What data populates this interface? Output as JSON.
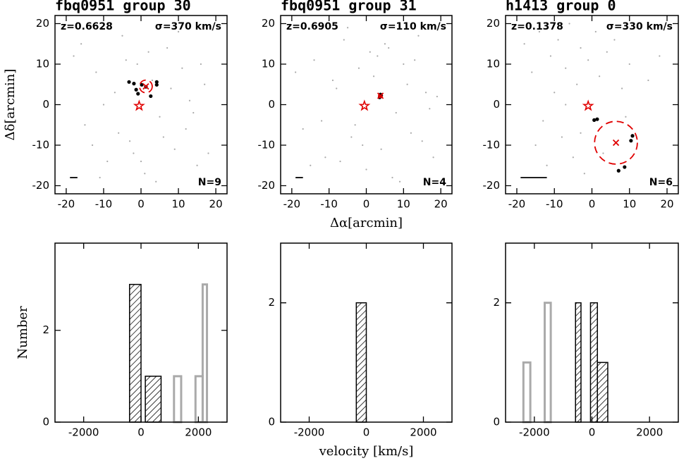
{
  "chart_data": [
    {
      "type": "scatter",
      "title": "fbq0951 group 30",
      "y_label": "Δδ[arcmin]",
      "annotations": {
        "redshift": "z=0.6628",
        "dispersion": "σ=370 km/s",
        "count": "N=9"
      },
      "xlim": [
        -23,
        23
      ],
      "ylim": [
        -22,
        22
      ],
      "xticks": [
        -20,
        -10,
        0,
        10,
        20
      ],
      "yticks": [
        -20,
        -10,
        0,
        10,
        20
      ],
      "scale_bar": 2,
      "series": [
        {
          "marker": "dot",
          "color": "#aaaaaa",
          "x": [
            -18,
            -15,
            -12,
            -9,
            -7,
            -5,
            -3,
            -1,
            1,
            3,
            5,
            7,
            9,
            11,
            13,
            15,
            17,
            -16,
            -11,
            -6,
            -2,
            2,
            6,
            10,
            14,
            -13,
            -8,
            -4,
            4,
            8,
            12,
            16,
            -10,
            0,
            18
          ],
          "values": [
            12,
            -5,
            8,
            -14,
            3,
            17,
            -9,
            10,
            -17,
            6,
            -3,
            14,
            -11,
            9,
            1,
            -15,
            5,
            15,
            -18,
            -7,
            -12,
            13,
            -8,
            18,
            -2,
            -10,
            19,
            11,
            -19,
            4,
            -6,
            10,
            0,
            -14,
            -12
          ]
        },
        {
          "marker": "dot",
          "color": "#000000",
          "x": [
            -3.2,
            -1.9,
            -1.3,
            -0.8,
            2.6,
            4.2,
            4.2,
            0.2,
            1.3
          ],
          "values": [
            5.6,
            5.2,
            3.7,
            2.7,
            2.1,
            5.6,
            4.9,
            4.9,
            4.4
          ]
        },
        {
          "marker": "x",
          "color": "#e00000",
          "x": [
            1.3
          ],
          "values": [
            4.5
          ],
          "radius": [
            1.7
          ]
        },
        {
          "marker": "star",
          "color": "#e00000",
          "x": [
            -0.5
          ],
          "values": [
            -0.3
          ]
        }
      ]
    },
    {
      "type": "scatter",
      "title": "fbq0951 group 31",
      "x_label": "Δα[arcmin]",
      "annotations": {
        "redshift": "z=0.6905",
        "dispersion": "σ=110 km/s",
        "count": "N=4"
      },
      "xlim": [
        -23,
        23
      ],
      "ylim": [
        -22,
        22
      ],
      "xticks": [
        -20,
        -10,
        0,
        10,
        20
      ],
      "yticks": [
        -20,
        -10,
        0,
        10,
        20
      ],
      "scale_bar": 2,
      "series": [
        {
          "marker": "dot",
          "color": "#aaaaaa",
          "x": [
            -17,
            -14,
            -11,
            -8,
            -6,
            -4,
            -2,
            0,
            2,
            4,
            6,
            8,
            10,
            12,
            14,
            16,
            18,
            -19,
            -12,
            -5,
            -1,
            3,
            7,
            11,
            15,
            -15,
            -9,
            -3,
            5,
            9,
            13,
            17,
            -7,
            1,
            19
          ],
          "values": [
            -6,
            11,
            -13,
            4,
            16,
            -8,
            9,
            -16,
            7,
            -11,
            14,
            -2,
            10,
            -7,
            17,
            3,
            -13,
            8,
            -4,
            19,
            -10,
            12,
            -18,
            5,
            -9,
            -15,
            6,
            -5,
            15,
            -19,
            11,
            -1,
            -14,
            13,
            2
          ]
        },
        {
          "marker": "dot",
          "color": "#000000",
          "x": [
            3.8,
            3.8,
            3.6,
            4.0
          ],
          "values": [
            2.5,
            2.0,
            1.8,
            2.2
          ]
        },
        {
          "marker": "x",
          "color": "#e00000",
          "x": [
            3.8
          ],
          "values": [
            2.2
          ],
          "radius": [
            0.5
          ]
        },
        {
          "marker": "star",
          "color": "#e00000",
          "x": [
            -0.5
          ],
          "values": [
            -0.3
          ]
        }
      ]
    },
    {
      "type": "scatter",
      "title": "h1413 group 0",
      "annotations": {
        "redshift": "z=0.1378",
        "dispersion": "σ=330 km/s",
        "count": "N=6"
      },
      "xlim": [
        -23,
        23
      ],
      "ylim": [
        -22,
        22
      ],
      "xticks": [
        -20,
        -10,
        0,
        10,
        20
      ],
      "yticks": [
        -20,
        -10,
        0,
        10,
        20
      ],
      "scale_bar": 7,
      "series": [
        {
          "marker": "dot",
          "color": "#aaaaaa",
          "x": [
            -18,
            -16,
            -14,
            -13,
            -11,
            -10,
            -9,
            -8,
            -7,
            -6,
            -5,
            -4,
            -3,
            -2,
            -1,
            1,
            2,
            4,
            6,
            8,
            10,
            12,
            15,
            18,
            -12,
            -15,
            -7,
            -3,
            3,
            9
          ],
          "values": [
            15,
            8,
            18,
            -4,
            12,
            3,
            16,
            -8,
            9,
            20,
            -13,
            5,
            14,
            -17,
            11,
            18,
            7,
            13,
            16,
            4,
            10,
            19,
            6,
            12,
            -15,
            -10,
            0,
            -7,
            -12,
            -3
          ]
        },
        {
          "marker": "dot",
          "color": "#000000",
          "x": [
            0.6,
            1.4,
            10.4,
            10.8,
            7.1,
            8.7
          ],
          "values": [
            -3.8,
            -3.6,
            -8.9,
            -7.7,
            -16.3,
            -15.4
          ]
        },
        {
          "marker": "x",
          "color": "#e00000",
          "x": [
            6.4
          ],
          "values": [
            -9.4
          ],
          "radius": [
            5.7
          ]
        },
        {
          "marker": "star",
          "color": "#e00000",
          "x": [
            -1
          ],
          "values": [
            -0.3
          ]
        }
      ]
    },
    {
      "type": "histogram",
      "y_label": "Number",
      "xlim": [
        -3000,
        3000
      ],
      "ylim": [
        0,
        3.9
      ],
      "xticks": [
        -2000,
        0,
        2000
      ],
      "yticks": [
        0,
        2
      ],
      "series": [
        {
          "color": "#000000",
          "hatch": true,
          "bins": [
            -400,
            0,
            150,
            700
          ],
          "counts": [
            3,
            0,
            1
          ]
        },
        {
          "color": "#aaaaaa",
          "hatch": false,
          "bins": [
            1150,
            1400,
            1900,
            2150,
            2300
          ],
          "counts": [
            1,
            0,
            1,
            3
          ]
        }
      ]
    },
    {
      "type": "histogram",
      "x_label": "velocity [km/s]",
      "xlim": [
        -3000,
        3000
      ],
      "ylim": [
        0,
        3
      ],
      "xticks": [
        -2000,
        0,
        2000
      ],
      "yticks": [
        0,
        2
      ],
      "series": [
        {
          "color": "#000000",
          "hatch": true,
          "bins": [
            -350,
            0
          ],
          "counts": [
            2
          ]
        }
      ]
    },
    {
      "type": "histogram",
      "xlim": [
        -3000,
        3000
      ],
      "ylim": [
        0,
        3
      ],
      "xticks": [
        -2000,
        0,
        2000
      ],
      "yticks": [
        0,
        2
      ],
      "series": [
        {
          "color": "#000000",
          "hatch": true,
          "bins": [
            -570,
            -380,
            -50,
            190,
            550
          ],
          "counts": [
            2,
            0,
            2,
            1
          ]
        },
        {
          "color": "#aaaaaa",
          "hatch": false,
          "bins": [
            -2380,
            -2140,
            -1640,
            -1430
          ],
          "counts": [
            1,
            0,
            2
          ]
        }
      ]
    }
  ]
}
